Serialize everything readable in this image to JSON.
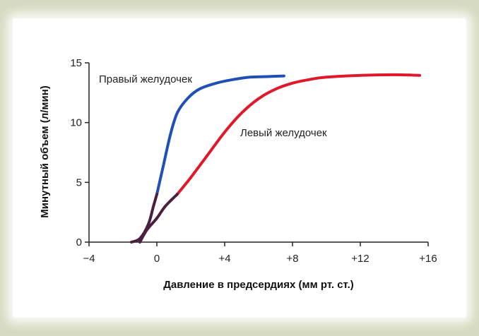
{
  "chart_data": {
    "type": "line",
    "title": "",
    "xlabel": "Давление в предсердиях (мм рт. ст.)",
    "ylabel": "Минутный объем (л/мин)",
    "xlim": [
      -4,
      16
    ],
    "ylim": [
      0,
      15
    ],
    "x_ticks": [
      -4,
      0,
      4,
      8,
      12,
      16
    ],
    "x_tick_labels": [
      "−4",
      "0",
      "+4",
      "+8",
      "+12",
      "+16"
    ],
    "y_ticks": [
      0,
      5,
      10,
      15
    ],
    "y_tick_labels": [
      "0",
      "5",
      "10",
      "15"
    ],
    "grid": false,
    "legend": "none",
    "series": [
      {
        "name": "Правый желудочек",
        "low_color": "#4a2040",
        "high_color": "#1f4fb8",
        "color_split_y": 4,
        "points": [
          [
            -1.5,
            0.0
          ],
          [
            -1.0,
            0.3
          ],
          [
            -0.5,
            1.5
          ],
          [
            -0.2,
            3.0
          ],
          [
            0.0,
            4.0
          ],
          [
            0.4,
            6.5
          ],
          [
            0.8,
            9.0
          ],
          [
            1.2,
            10.8
          ],
          [
            1.8,
            12.0
          ],
          [
            2.5,
            12.8
          ],
          [
            3.5,
            13.3
          ],
          [
            4.5,
            13.6
          ],
          [
            5.5,
            13.8
          ],
          [
            6.5,
            13.85
          ],
          [
            7.5,
            13.9
          ]
        ]
      },
      {
        "name": "Левый желудочек",
        "low_color": "#4a2040",
        "high_color": "#e0182a",
        "color_split_y": 4,
        "points": [
          [
            -1.0,
            0.0
          ],
          [
            -0.6,
            1.0
          ],
          [
            0.0,
            2.0
          ],
          [
            0.5,
            3.0
          ],
          [
            1.2,
            4.0
          ],
          [
            2.0,
            5.4
          ],
          [
            3.0,
            7.3
          ],
          [
            4.0,
            9.2
          ],
          [
            5.0,
            10.8
          ],
          [
            6.0,
            12.0
          ],
          [
            7.0,
            12.8
          ],
          [
            8.0,
            13.3
          ],
          [
            9.0,
            13.6
          ],
          [
            10.0,
            13.8
          ],
          [
            12.0,
            13.95
          ],
          [
            14.0,
            14.0
          ],
          [
            15.5,
            13.95
          ]
        ]
      }
    ]
  }
}
